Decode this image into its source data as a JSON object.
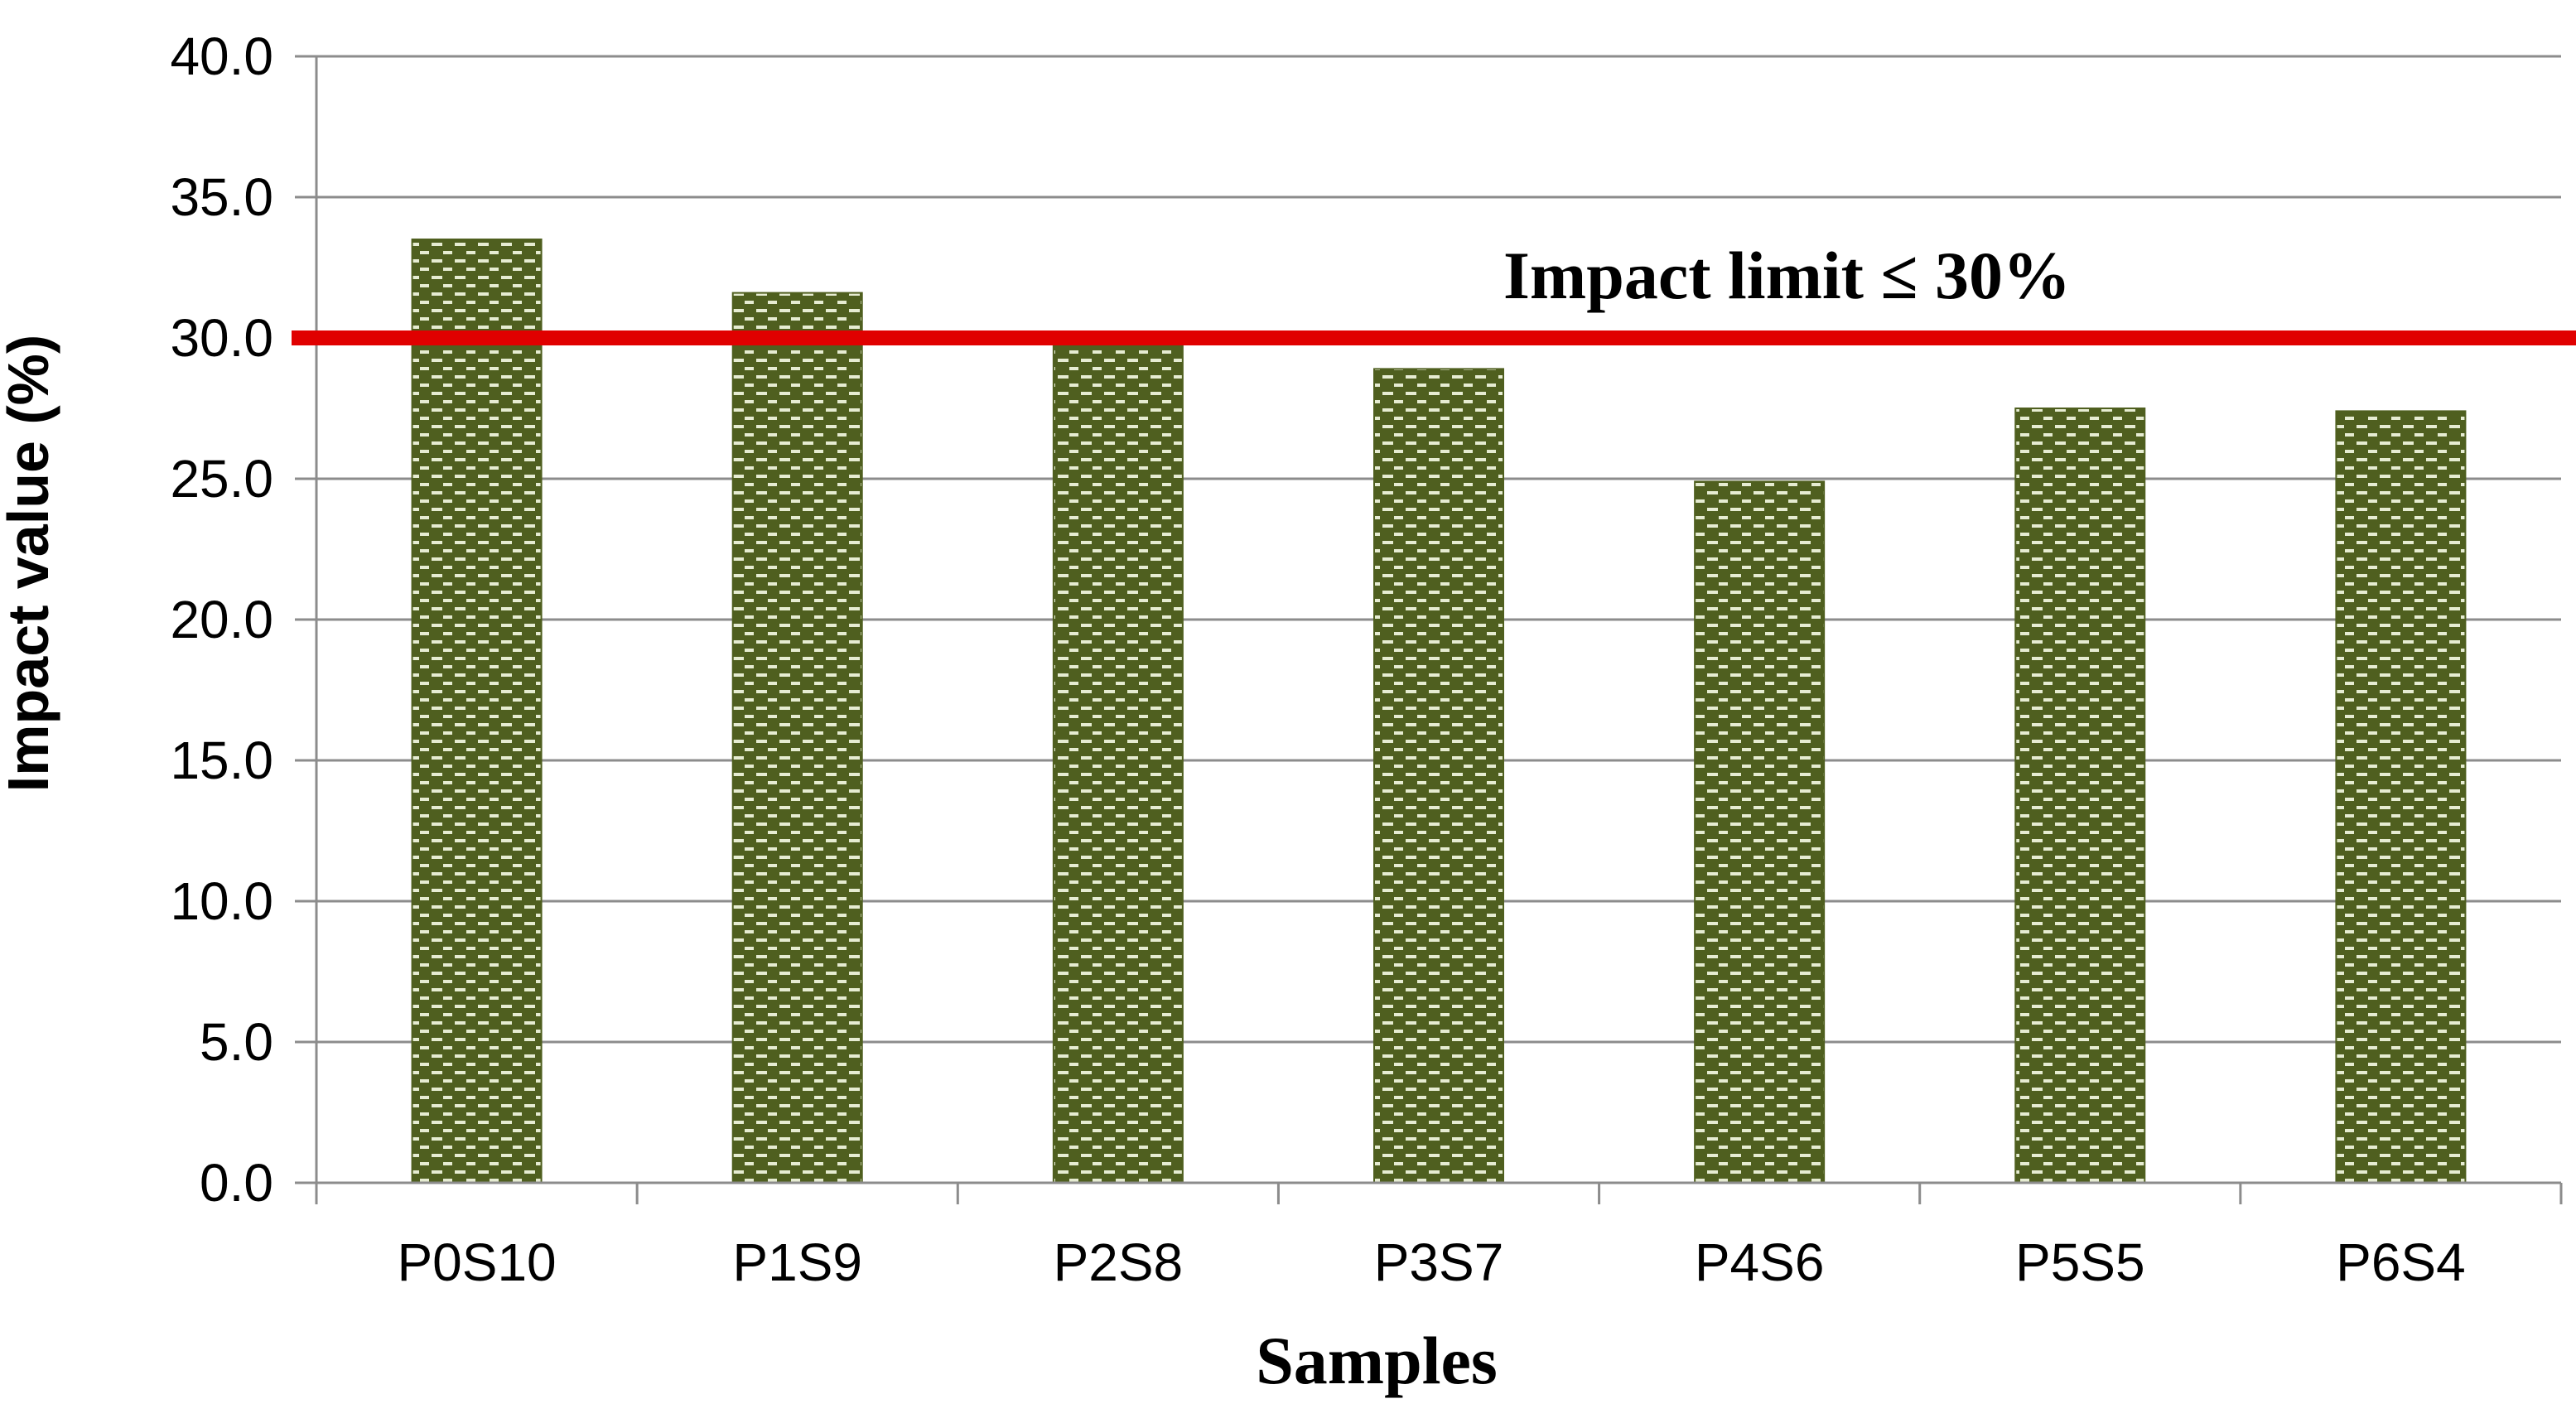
{
  "chart_data": {
    "type": "bar",
    "title": "",
    "xlabel": "Samples",
    "ylabel": "Impact value (%)",
    "categories": [
      "P0S10",
      "P1S9",
      "P2S8",
      "P3S7",
      "P4S6",
      "P5S5",
      "P6S4"
    ],
    "values": [
      33.5,
      31.6,
      30.2,
      28.9,
      24.9,
      27.5,
      27.4
    ],
    "ylim": [
      0,
      40
    ],
    "yticks": [
      "0.0",
      "5.0",
      "10.0",
      "15.0",
      "20.0",
      "25.0",
      "30.0",
      "35.0",
      "40.0"
    ],
    "grid": true,
    "legend": "none",
    "reference_line": {
      "value": 30,
      "label": "Impact limit  ≤ 30%",
      "color": "#e00000"
    },
    "colors": {
      "bar_fill": "#4f5f1f",
      "bar_pattern": "#e6ecd2",
      "grid": "#8c8c8c",
      "axis": "#8c8c8c"
    }
  }
}
